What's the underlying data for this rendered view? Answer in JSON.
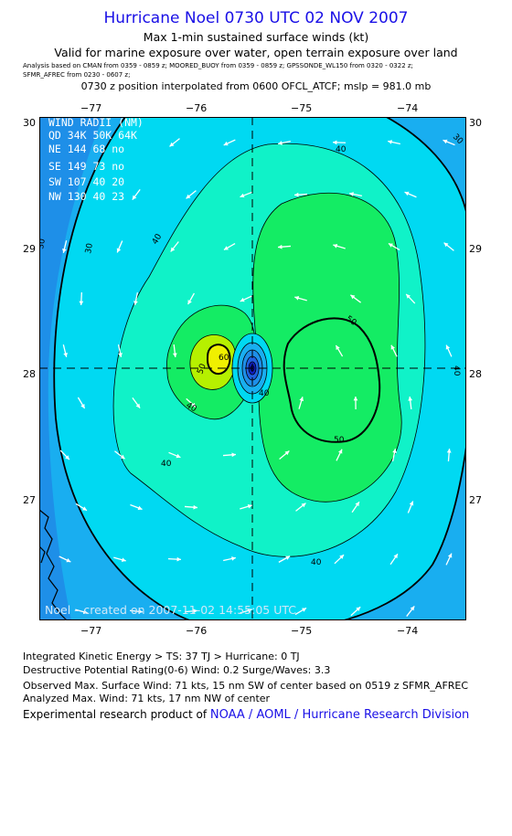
{
  "header": {
    "title": "Hurricane Noel 0730 UTC 02 NOV 2007",
    "subtitle1": "Max 1-min sustained surface winds (kt)",
    "subtitle2": "Valid for marine exposure over water, open terrain exposure over land",
    "analysis_line1": "Analysis based on   CMAN from 0359 - 0859 z;   MOORED_BUOY from 0359 - 0859 z;   GPSSONDE_WL150 from 0320 - 0322 z;",
    "analysis_line2": "SFMR_AFREC from 0230 - 0607 z;",
    "position_line": "0730 z position interpolated from 0600 OFCL_ATCF; mslp = 981.0 mb"
  },
  "axes": {
    "lon_ticks": [
      "−77",
      "−76",
      "−75",
      "−74"
    ],
    "lat_ticks": [
      "30",
      "29",
      "28",
      "27"
    ]
  },
  "wind_radii": {
    "title": "WIND RADII (NM)",
    "header": "QD  34K  50K  64K",
    "rows": [
      "NE  144   68   no",
      "SE  149   73   no",
      "SW  107   40   20",
      "NW  130   40   23"
    ]
  },
  "contour_labels": [
    "30",
    "30",
    "30",
    "40",
    "40",
    "40",
    "40",
    "40",
    "40",
    "50",
    "50",
    "50",
    "60",
    "40"
  ],
  "credit": "Noel  –  created on 2007-11-02 14:55:05 UTC",
  "footer": {
    "ike": "Integrated Kinetic Energy > TS: 37 TJ   > Hurricane: 0 TJ",
    "dpr": "Destructive Potential Rating(0-6)   Wind: 0.2 Surge/Waves: 3.3",
    "observed": "Observed Max. Surface Wind: 71 kts, 15 nm SW of center based on 0519 z SFMR_AFREC",
    "analyzed": "Analyzed Max. Wind: 71 kts, 17 nm NW of center",
    "experimental": "Experimental research product of ",
    "org": "NOAA / AOML / Hurricane Research Division"
  },
  "colors": {
    "title_blue": "#1a10e6",
    "band_lt20": "#1e8fe8",
    "band_20_30": "#19aef0",
    "band_30_40": "#00d9f2",
    "band_40_50": "#10f2c8",
    "band_50_60": "#14ec64",
    "band_60_70": "#b6f000",
    "band_70_plus": "#f0f000"
  }
}
